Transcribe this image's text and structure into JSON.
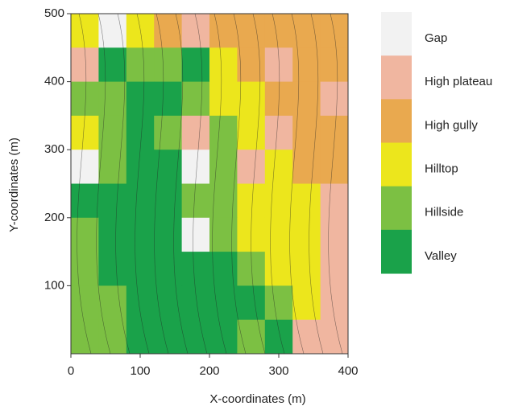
{
  "chart_data": {
    "type": "categorical-raster",
    "x_label": "X-coordinates (m)",
    "y_label": "Y-coordinates (m)",
    "xlim": [
      0,
      400
    ],
    "ylim": [
      0,
      500
    ],
    "xticks": [
      0,
      100,
      200,
      300,
      400
    ],
    "yticks": [
      100,
      200,
      300,
      400,
      500
    ],
    "classes": [
      {
        "name": "Gap",
        "color": "#f2f2f2"
      },
      {
        "name": "High plateau",
        "color": "#f0b6a0"
      },
      {
        "name": "High gully",
        "color": "#e9a94f"
      },
      {
        "name": "Hilltop",
        "color": "#ece61c"
      },
      {
        "name": "Hillside",
        "color": "#7cc043"
      },
      {
        "name": "Valley",
        "color": "#1aa24a"
      }
    ],
    "cells": [
      [
        3,
        0,
        3,
        2,
        1,
        2,
        2,
        2,
        2,
        2
      ],
      [
        1,
        5,
        4,
        4,
        5,
        3,
        2,
        1,
        2,
        2
      ],
      [
        4,
        4,
        5,
        5,
        4,
        3,
        3,
        2,
        2,
        1
      ],
      [
        3,
        4,
        5,
        4,
        1,
        4,
        3,
        1,
        2,
        2
      ],
      [
        0,
        4,
        5,
        5,
        0,
        4,
        1,
        3,
        2,
        2
      ],
      [
        5,
        5,
        5,
        5,
        4,
        4,
        3,
        3,
        3,
        1
      ],
      [
        4,
        5,
        5,
        5,
        0,
        4,
        3,
        3,
        3,
        1
      ],
      [
        4,
        5,
        5,
        5,
        5,
        5,
        4,
        3,
        3,
        1
      ],
      [
        4,
        4,
        5,
        5,
        5,
        5,
        5,
        4,
        3,
        1
      ],
      [
        4,
        4,
        5,
        5,
        5,
        5,
        4,
        5,
        1,
        1
      ]
    ]
  }
}
